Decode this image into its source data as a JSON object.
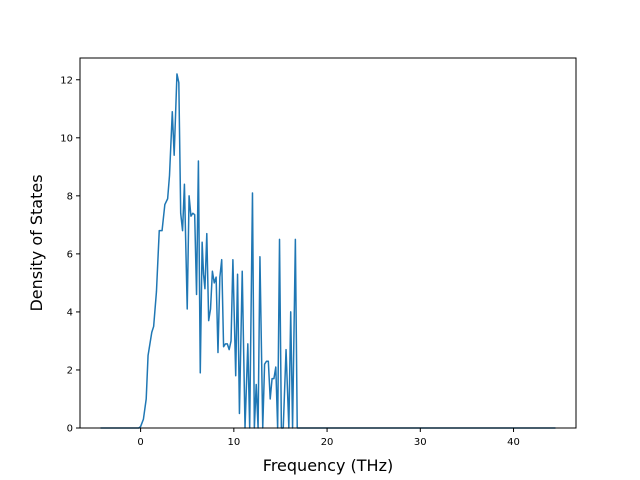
{
  "chart_data": {
    "type": "line",
    "title": "",
    "xlabel": "Frequency (THz)",
    "ylabel": "Density of States",
    "xlim": [
      -6.5,
      46.7
    ],
    "ylim": [
      0,
      12.75
    ],
    "xticks": [
      0,
      10,
      20,
      30,
      40
    ],
    "yticks": [
      0,
      2,
      4,
      6,
      8,
      10,
      12
    ],
    "grid": false,
    "legend": "none",
    "colors": {
      "line": "#1f77b4",
      "axes": "#000000",
      "background": "#ffffff"
    },
    "series": [
      {
        "x": [
          -4.3,
          -0.2,
          0.0,
          0.3,
          0.6,
          0.8,
          1.0,
          1.2,
          1.4,
          1.7,
          2.0,
          2.3,
          2.6,
          2.9,
          3.1,
          3.4,
          3.6,
          3.75,
          3.9,
          4.1,
          4.3,
          4.5,
          4.7,
          5.0,
          5.2,
          5.4,
          5.6,
          5.8,
          6.0,
          6.2,
          6.4,
          6.6,
          6.75,
          6.9,
          7.1,
          7.3,
          7.5,
          7.7,
          7.9,
          8.1,
          8.3,
          8.5,
          8.7,
          8.9,
          9.1,
          9.3,
          9.5,
          9.7,
          9.9,
          10.2,
          10.4,
          10.6,
          10.9,
          11.2,
          11.5,
          11.7,
          12.0,
          12.2,
          12.4,
          12.6,
          12.8,
          13.1,
          13.3,
          13.5,
          13.7,
          13.9,
          14.1,
          14.3,
          14.5,
          14.7,
          14.9,
          15.1,
          15.3,
          15.6,
          15.9,
          16.1,
          16.3,
          16.6,
          16.8,
          17.0,
          17.2,
          17.4,
          17.6,
          17.8,
          18.0,
          18.3,
          18.5,
          18.8,
          19.0,
          19.2,
          19.4,
          19.6,
          19.8,
          20.0,
          20.2,
          20.4,
          44.5
        ],
        "y": [
          0,
          0,
          0.05,
          0.3,
          1.0,
          2.5,
          2.9,
          3.3,
          3.5,
          4.7,
          6.8,
          6.8,
          7.7,
          7.9,
          8.7,
          10.9,
          9.4,
          10.8,
          12.2,
          11.9,
          7.4,
          6.8,
          8.4,
          4.1,
          8.0,
          7.3,
          7.4,
          7.35,
          4.6,
          9.2,
          1.9,
          6.4,
          5.3,
          4.8,
          6.7,
          3.7,
          4.1,
          5.4,
          5.0,
          5.2,
          2.6,
          5.2,
          5.8,
          2.8,
          2.9,
          2.9,
          2.7,
          3.0,
          5.8,
          1.8,
          5.3,
          0.5,
          5.4,
          0.0,
          2.9,
          0.0,
          8.1,
          0.0,
          1.5,
          0.0,
          5.9,
          0.0,
          2.2,
          2.3,
          2.3,
          1.0,
          1.7,
          1.7,
          2.1,
          0.0,
          6.5,
          0.0,
          0.0,
          2.7,
          0.0,
          4.0,
          0.0,
          6.5,
          0.0,
          0.0,
          0.0,
          0.0,
          0.0,
          0.0,
          0.0,
          0.0,
          0.0,
          0.0,
          0.0,
          0.0,
          0.0,
          0.0,
          0.0,
          0.0,
          0.0,
          0.0,
          0.0
        ]
      }
    ]
  }
}
